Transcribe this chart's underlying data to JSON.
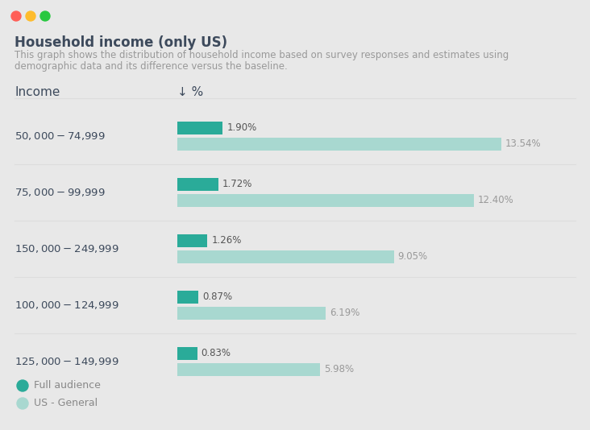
{
  "title": "Household income (only US)",
  "subtitle_line1": "This graph shows the distribution of household income based on survey responses and estimates using",
  "subtitle_line2": "demographic data and its difference versus the baseline.",
  "col_header_income": "Income",
  "col_header_pct": "↓ %",
  "categories": [
    "$50,000 - $74,999",
    "$75,000 - $99,999",
    "$150,000 - $249,999",
    "$100,000 - $124,999",
    "$125,000 - $149,999"
  ],
  "full_audience": [
    1.9,
    1.72,
    1.26,
    0.87,
    0.83
  ],
  "us_general": [
    13.54,
    12.4,
    9.05,
    6.19,
    5.98
  ],
  "full_audience_color": "#2aab99",
  "us_general_color": "#a8d8d0",
  "background_color": "#e8e8e8",
  "card_color": "#ffffff",
  "title_color": "#3d4a5c",
  "subtitle_color": "#999999",
  "label_color": "#888888",
  "category_color": "#3d4a5c",
  "bar_label_color_full": "#555555",
  "bar_label_color_us": "#999999",
  "separator_color": "#dddddd",
  "legend_full": "Full audience",
  "legend_us": "US - General",
  "dot_colors": [
    "#ff5f57",
    "#febc2e",
    "#28c840"
  ],
  "max_value": 15.5
}
